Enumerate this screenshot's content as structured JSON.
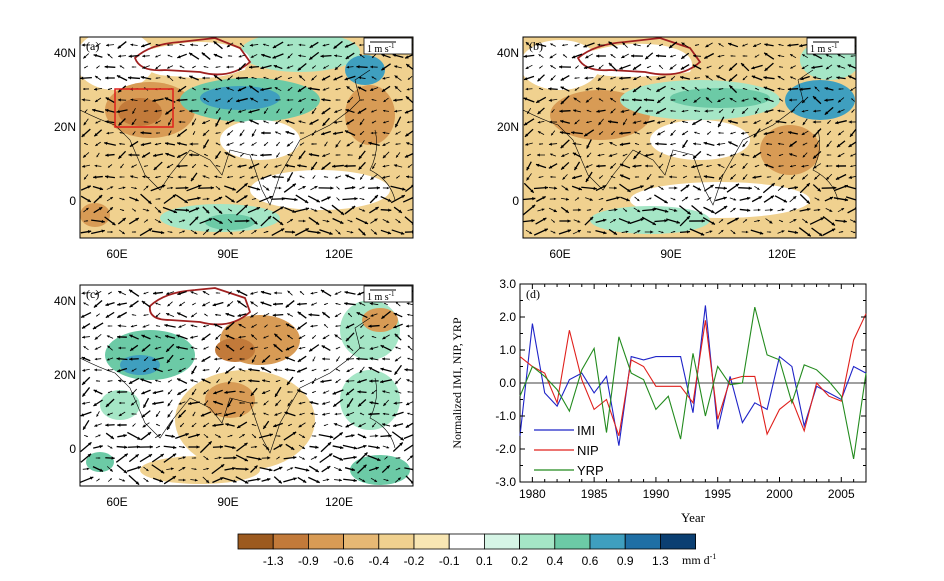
{
  "maps": [
    {
      "id": "a",
      "panel_label": "(a)",
      "scale_label": "1 m s",
      "scale_sup": "-1",
      "x_ticks": [
        "60E",
        "90E",
        "120E"
      ],
      "y_ticks": [
        "40N",
        "20N",
        "0"
      ],
      "box_color": "#e0201c"
    },
    {
      "id": "b",
      "panel_label": "(b)",
      "scale_label": "1 m s",
      "scale_sup": "-1",
      "x_ticks": [
        "60E",
        "90E",
        "120E"
      ],
      "y_ticks": [
        "40N",
        "20N",
        "0"
      ]
    },
    {
      "id": "c",
      "panel_label": "(c)",
      "scale_label": "1 m s",
      "scale_sup": "-1",
      "x_ticks": [
        "60E",
        "90E",
        "120E"
      ],
      "y_ticks": [
        "40N",
        "20N",
        "0"
      ]
    }
  ],
  "colorbar": {
    "labels": [
      "-1.3",
      "-0.9",
      "-0.6",
      "-0.4",
      "-0.2",
      "-0.1",
      "0.1",
      "0.2",
      "0.4",
      "0.6",
      "0.9",
      "1.3"
    ],
    "colors": [
      "#9c5a1f",
      "#c27a3a",
      "#d89b55",
      "#e6b874",
      "#f0d18f",
      "#f8e6b3",
      "#ffffff",
      "#d6f5e6",
      "#a5e6c6",
      "#6ccaa6",
      "#3f9fbf",
      "#1f6fa5",
      "#0b3f72"
    ],
    "unit": "mm d",
    "unit_sup": "-1"
  },
  "chart_data": {
    "type": "line",
    "panel_label": "(d)",
    "xlabel": "Year",
    "ylabel": "Normalized IMI, NIP, YRP",
    "xlim": [
      1979,
      2007
    ],
    "ylim": [
      -3.0,
      3.0
    ],
    "x_ticks": [
      "1980",
      "1985",
      "1990",
      "1995",
      "2000",
      "2005"
    ],
    "y_ticks": [
      "3.0",
      "2.0",
      "1.0",
      "0.0",
      "-1.0",
      "-2.0",
      "-3.0"
    ],
    "x": [
      1979,
      1980,
      1981,
      1982,
      1983,
      1984,
      1985,
      1986,
      1987,
      1988,
      1989,
      1990,
      1991,
      1992,
      1993,
      1994,
      1995,
      1996,
      1997,
      1998,
      1999,
      2000,
      2001,
      2002,
      2003,
      2004,
      2005,
      2006,
      2007
    ],
    "series": [
      {
        "name": "IMI",
        "color": "#1f24c8",
        "values": [
          -1.6,
          1.8,
          -0.3,
          -0.7,
          0.1,
          0.3,
          -0.3,
          0.2,
          -1.9,
          0.8,
          0.7,
          0.8,
          0.8,
          0.8,
          -0.9,
          2.35,
          -1.4,
          0.2,
          -1.2,
          -0.6,
          -0.8,
          0.8,
          0.5,
          -1.3,
          -0.1,
          -0.3,
          -0.5,
          0.5,
          0.3
        ]
      },
      {
        "name": "NIP",
        "color": "#e0201c",
        "values": [
          0.8,
          0.5,
          0.3,
          -0.6,
          1.6,
          0.1,
          -0.8,
          -0.5,
          -1.6,
          0.7,
          0.5,
          -0.1,
          -0.1,
          -0.1,
          -0.6,
          1.9,
          -1.1,
          0.1,
          0.2,
          0.2,
          -1.55,
          -0.8,
          -0.5,
          -1.45,
          0.0,
          -0.4,
          -0.55,
          1.3,
          2.1
        ]
      },
      {
        "name": "YRP",
        "color": "#238b1e",
        "values": [
          -0.4,
          0.5,
          0.2,
          -0.2,
          -0.85,
          0.4,
          1.05,
          -1.5,
          1.4,
          0.3,
          0.1,
          -0.8,
          -0.4,
          -1.7,
          0.9,
          -1.0,
          0.5,
          -0.05,
          0.0,
          2.3,
          0.85,
          0.7,
          -0.6,
          0.55,
          0.4,
          0.05,
          -0.4,
          -2.3,
          0.3
        ]
      }
    ]
  }
}
